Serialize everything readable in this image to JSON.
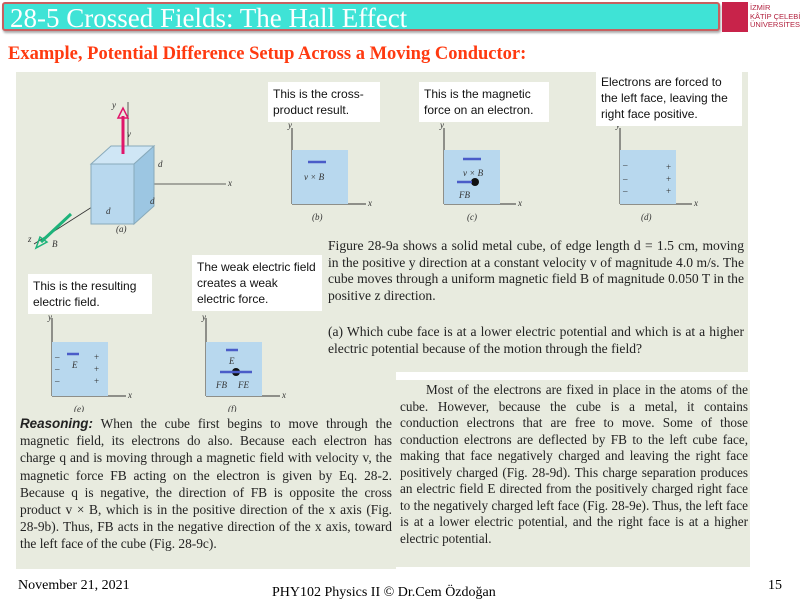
{
  "header": {
    "title": "28-5 Crossed Fields: The Hall Effect",
    "logo_text": [
      "İZMİR",
      "KÂTİP ÇELEBİ",
      "ÜNİVERSİTESİ"
    ]
  },
  "subtitle": "Example, Potential Difference Setup Across a Moving Conductor:",
  "figure": {
    "callouts": {
      "b": "This is the cross-product result.",
      "c": "This is the magnetic force on an electron.",
      "d": "Electrons are forced to the left face, leaving the right face positive.",
      "e": "This is the resulting electric field.",
      "f": "The weak electric field creates a weak electric force."
    },
    "labels": {
      "a": "(a)",
      "b": "(b)",
      "c": "(c)",
      "d": "(d)",
      "e": "(e)",
      "f": "(f)",
      "x": "x",
      "y": "y",
      "z": "z",
      "d_edge": "d",
      "v": "v",
      "B": "B",
      "vxB": "v × B",
      "FB": "FB",
      "FE": "FE",
      "E": "E"
    },
    "colors": {
      "cube": "#b8d8ee",
      "velocity": "#e0156a",
      "field_B": "#1db37a",
      "arrow": "#4a5cc8"
    }
  },
  "problem": {
    "p1": "Figure 28-9a shows a solid metal cube, of edge length d = 1.5 cm, moving in the positive y direction at a constant velocity v of magnitude 4.0 m/s. The cube moves through a uniform magnetic field B of magnitude 0.050 T in the positive z direction.",
    "p2": "(a) Which cube face is at a lower electric potential and which is at a higher electric potential because of the motion through the field?"
  },
  "reasoning": {
    "label": "Reasoning:",
    "text": "When the cube first begins to move through the magnetic field, its electrons do also. Because each electron has charge q and is moving through a magnetic field with velocity v, the magnetic force FB acting on the electron is given by Eq. 28-2. Because q is negative, the direction of FB is opposite the cross product v × B, which is in the positive direction of the x axis (Fig. 28-9b). Thus, FB acts in the negative direction of the x axis, toward the left face of the cube (Fig. 28-9c)."
  },
  "answer": "Most of the electrons are fixed in place in the atoms of the cube. However, because the cube is a metal, it contains conduction electrons that are free to move. Some of those conduction electrons are deflected by FB to the left cube face, making that face negatively charged and leaving the right face positively charged (Fig. 28-9d). This charge separation produces an electric field E directed from the positively charged right face to the negatively charged left face (Fig. 28-9e). Thus, the left face is at a lower electric potential, and the right face is at a higher electric potential.",
  "footer": {
    "date": "November 21, 2021",
    "course": "PHY102 Physics II © Dr.Cem Özdoğan",
    "page": "15"
  }
}
